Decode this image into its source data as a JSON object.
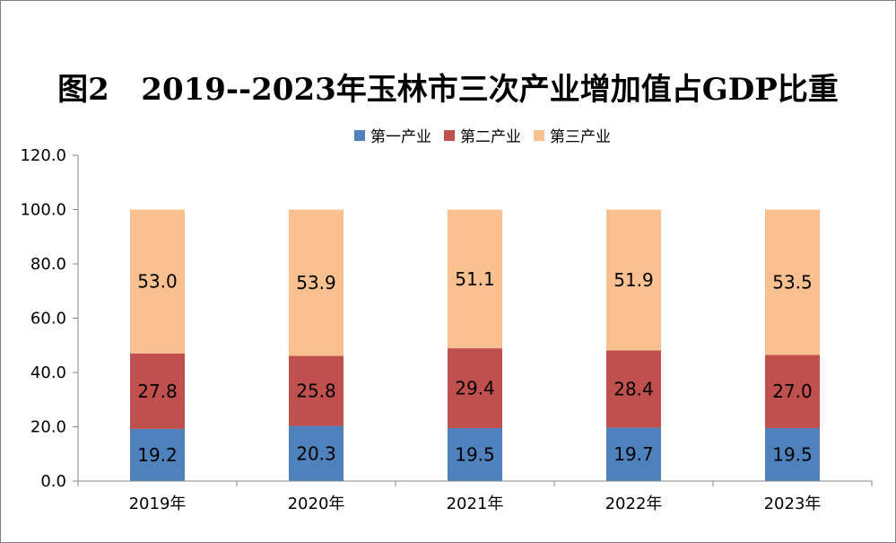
{
  "chart_data": {
    "type": "bar",
    "stacked": true,
    "title": "图2   2019--2023年玉林市三次产业增加值占GDP比重",
    "xlabel": "",
    "ylabel": "",
    "categories": [
      "2019年",
      "2020年",
      "2021年",
      "2022年",
      "2023年"
    ],
    "series": [
      {
        "name": "第一产业",
        "color": "#4f81bd",
        "values": [
          19.2,
          20.3,
          19.5,
          19.7,
          19.5
        ],
        "labels": [
          "19.2",
          "20.3",
          "19.5",
          "19.7",
          "19.5"
        ]
      },
      {
        "name": "第二产业",
        "color": "#c0504d",
        "values": [
          27.8,
          25.8,
          29.4,
          28.4,
          27.0
        ],
        "labels": [
          "27.8",
          "25.8",
          "29.4",
          "28.4",
          "27.0"
        ]
      },
      {
        "name": "第三产业",
        "color": "#fac090",
        "values": [
          53.0,
          53.9,
          51.1,
          51.9,
          53.5
        ],
        "labels": [
          "53.0",
          "53.9",
          "51.1",
          "51.9",
          "53.5"
        ]
      }
    ],
    "ylim": [
      0,
      120
    ],
    "yticks": [
      "0.0",
      "20.0",
      "40.0",
      "60.0",
      "80.0",
      "100.0",
      "120.0"
    ],
    "grid": false,
    "legend_position": "top"
  }
}
